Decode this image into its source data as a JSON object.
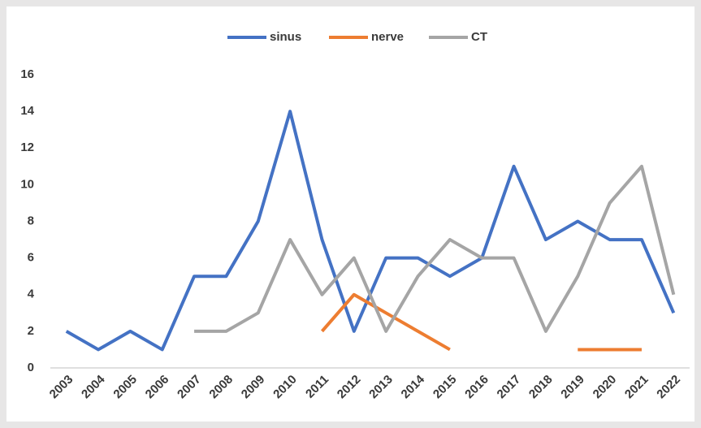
{
  "chart_data": {
    "type": "line",
    "categories": [
      "2003",
      "2004",
      "2005",
      "2006",
      "2007",
      "2008",
      "2009",
      "2010",
      "2011",
      "2012",
      "2013",
      "2014",
      "2015",
      "2016",
      "2017",
      "2018",
      "2019",
      "2020",
      "2021",
      "2022"
    ],
    "series": [
      {
        "name": "sinus",
        "color": "#4472c4",
        "values": [
          2,
          1,
          2,
          1,
          5,
          5,
          8,
          14,
          7,
          2,
          6,
          6,
          5,
          6,
          11,
          7,
          8,
          7,
          7,
          3
        ]
      },
      {
        "name": "nerve",
        "color": "#ed7d31",
        "values": [
          null,
          null,
          null,
          null,
          null,
          null,
          null,
          null,
          2,
          4,
          3,
          2,
          1,
          null,
          null,
          null,
          1,
          1,
          1,
          null
        ]
      },
      {
        "name": "CT",
        "color": "#a5a5a5",
        "values": [
          null,
          null,
          null,
          null,
          2,
          2,
          3,
          7,
          4,
          6,
          2,
          5,
          7,
          6,
          6,
          2,
          5,
          9,
          11,
          4
        ]
      }
    ],
    "ylim": [
      0,
      16
    ],
    "yticks": [
      0,
      2,
      4,
      6,
      8,
      10,
      12,
      14,
      16
    ],
    "grid": false,
    "legend": "top"
  }
}
